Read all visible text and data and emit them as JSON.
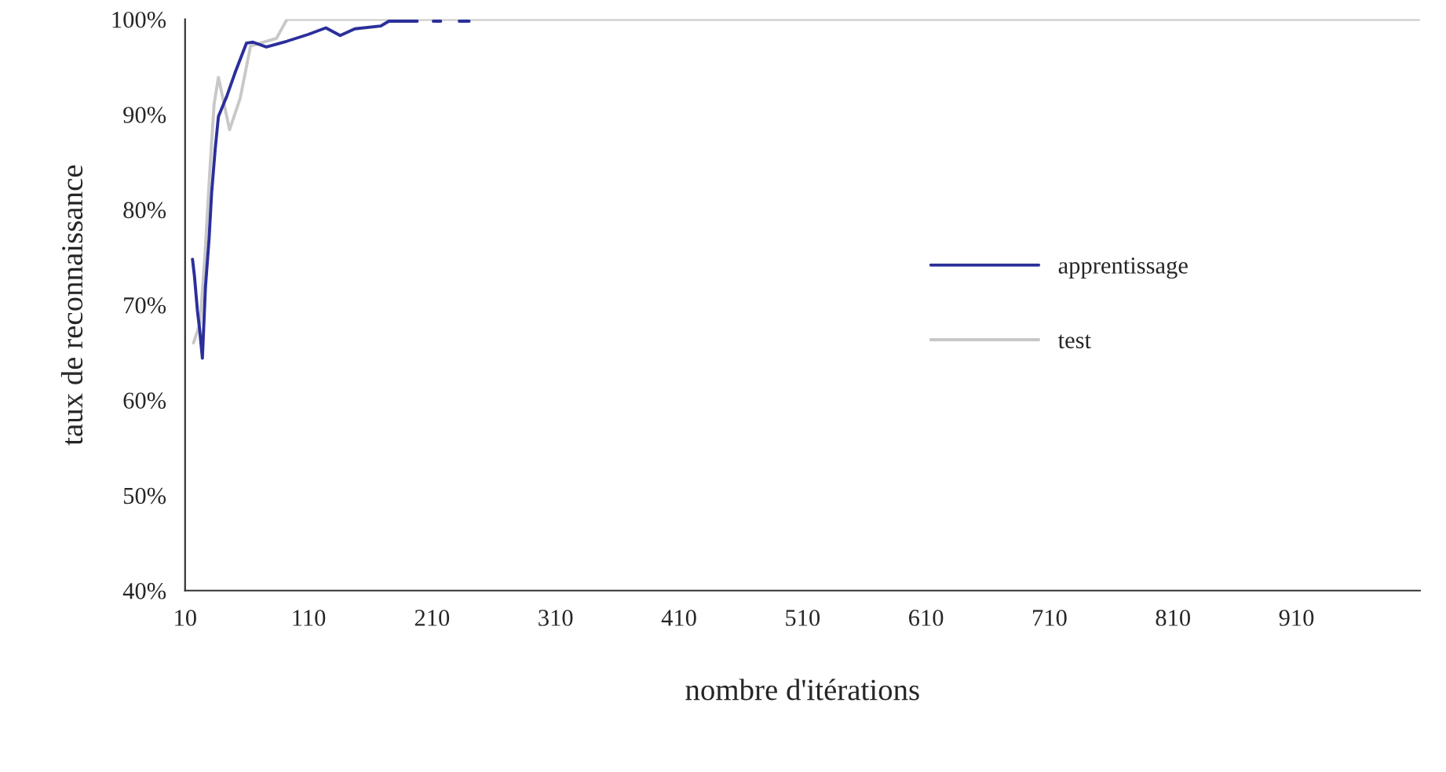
{
  "chart_data": {
    "type": "line",
    "xlabel": "nombre d'itérations",
    "ylabel": "taux de reconnaissance",
    "xlim": [
      10,
      1010
    ],
    "xticks": [
      10,
      110,
      210,
      310,
      410,
      510,
      610,
      710,
      810,
      910
    ],
    "ylim": [
      40,
      100
    ],
    "yticks": [
      {
        "value": 40,
        "label": "40%"
      },
      {
        "value": 50,
        "label": "50%"
      },
      {
        "value": 60,
        "label": "60%"
      },
      {
        "value": 70,
        "label": "70%"
      },
      {
        "value": 80,
        "label": "80%"
      },
      {
        "value": 90,
        "label": "90%"
      },
      {
        "value": 100,
        "label": "100%"
      }
    ],
    "grid": false,
    "legend": "right",
    "marker": "none",
    "line_style": "solid",
    "series": [
      {
        "name": "apprentissage",
        "color": "#2b2f9a",
        "x": [
          16,
          17.6,
          20,
          21.8,
          24,
          26.5,
          29.4,
          31.5,
          34.4,
          37,
          44,
          50.5,
          59.7,
          65,
          75.8,
          92.5,
          109.5,
          124,
          135.6,
          147.4,
          168.5,
          175,
          198,
          200,
          211,
          217,
          225,
          232,
          240
        ],
        "values": [
          74.8,
          73,
          69.4,
          67.4,
          64.4,
          71.9,
          76.9,
          81.8,
          86.4,
          89.8,
          92,
          94.4,
          97.5,
          97.6,
          97.1,
          97.7,
          98.4,
          99.1,
          98.3,
          99,
          99.3,
          99.8,
          99.8,
          null,
          99.8,
          99.8,
          null,
          99.8,
          99.8
        ]
      },
      {
        "name": "test",
        "color": "#c8c8c8",
        "x": [
          16.8,
          22,
          26,
          30,
          33.5,
          37,
          46,
          54.6,
          63,
          84,
          92.5,
          1010
        ],
        "values": [
          66,
          68,
          75,
          84,
          91.1,
          93.9,
          88.4,
          91.7,
          97.2,
          98,
          100,
          100
        ]
      }
    ]
  }
}
